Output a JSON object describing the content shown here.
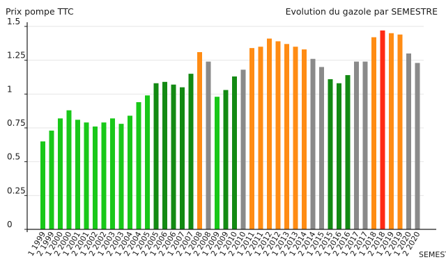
{
  "chart_data": {
    "type": "bar",
    "title": "Evolution du gazole par SEMESTRE",
    "ylabel": "Prix pompe TTC",
    "xlabel": "SEMESTRE",
    "ylim": [
      0,
      1.5
    ],
    "yticks": [
      "0",
      "0.25",
      "0.5",
      "0.75",
      "1",
      "1.25",
      "1.5"
    ],
    "grid": true,
    "colors": {
      "light_green": "#19c819",
      "dark_green": "#138a13",
      "orange": "#ff8c14",
      "gray": "#8a8a8a",
      "red": "#ff2a14",
      "grid": "#e6e6e6",
      "axis": "#1a1a1a"
    },
    "categories": [
      "1 1999",
      "2 1999",
      "1 2000",
      "2 2000",
      "1 2001",
      "2 2001",
      "1 2002",
      "2 2002",
      "1 2003",
      "2 2003",
      "1 2004",
      "2 2004",
      "1 2005",
      "2 2005",
      "1 2006",
      "2 2006",
      "1 2007",
      "2 2007",
      "1 2008",
      "2 2008",
      "1 2009",
      "2 2009",
      "1 2010",
      "2 2010",
      "1 2011",
      "2 2011",
      "1 2012",
      "2 2012",
      "1 2013",
      "2 2013",
      "1 2014",
      "2 2014",
      "1 2015",
      "2 2015",
      "1 2016",
      "2 2016",
      "1 2017",
      "2 2017",
      "1 2018",
      "2 2018",
      "1 2019",
      "2 2019",
      "1 2020",
      "2 2020"
    ],
    "values": [
      0.65,
      0.73,
      0.82,
      0.88,
      0.81,
      0.79,
      0.76,
      0.79,
      0.82,
      0.78,
      0.84,
      0.94,
      0.99,
      1.08,
      1.09,
      1.07,
      1.05,
      1.15,
      1.31,
      1.24,
      0.98,
      1.03,
      1.13,
      1.18,
      1.34,
      1.35,
      1.41,
      1.39,
      1.37,
      1.35,
      1.33,
      1.26,
      1.2,
      1.11,
      1.08,
      1.14,
      1.24,
      1.24,
      1.42,
      1.47,
      1.45,
      1.44,
      1.3,
      1.23
    ],
    "bar_colors": [
      "light_green",
      "light_green",
      "light_green",
      "light_green",
      "light_green",
      "light_green",
      "light_green",
      "light_green",
      "light_green",
      "light_green",
      "light_green",
      "light_green",
      "light_green",
      "dark_green",
      "dark_green",
      "dark_green",
      "dark_green",
      "dark_green",
      "orange",
      "gray",
      "light_green",
      "dark_green",
      "dark_green",
      "gray",
      "orange",
      "orange",
      "orange",
      "orange",
      "orange",
      "orange",
      "orange",
      "gray",
      "gray",
      "dark_green",
      "dark_green",
      "dark_green",
      "gray",
      "gray",
      "orange",
      "red",
      "orange",
      "orange",
      "gray",
      "gray"
    ]
  }
}
